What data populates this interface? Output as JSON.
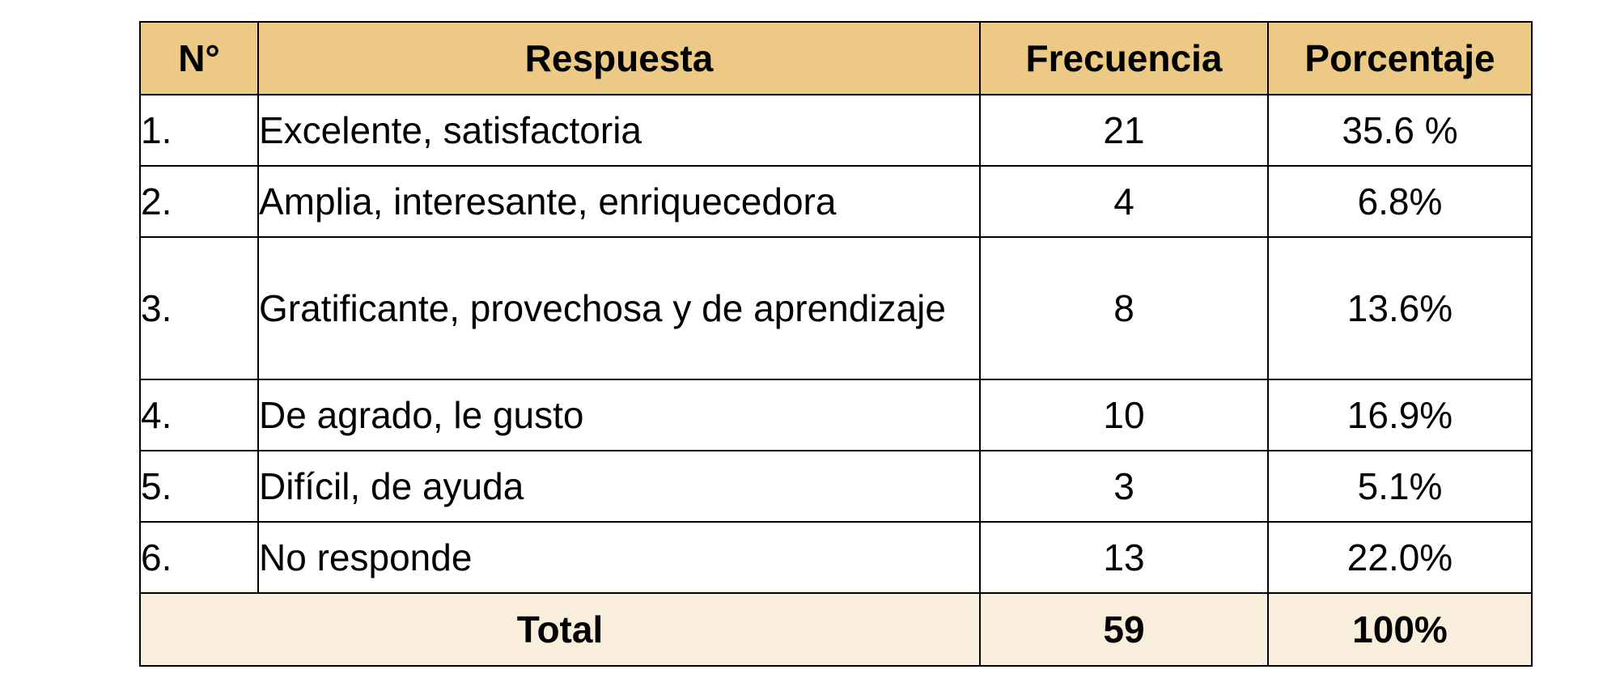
{
  "table": {
    "headers": {
      "num": "N°",
      "respuesta": "Respuesta",
      "frecuencia": "Frecuencia",
      "porcentaje": "Porcentaje"
    },
    "rows": [
      {
        "num": "1.",
        "respuesta": "Excelente, satisfactoria",
        "frecuencia": "21",
        "porcentaje": "35.6 %"
      },
      {
        "num": "2.",
        "respuesta": "Amplia, interesante, enriquecedora",
        "frecuencia": "4",
        "porcentaje": "6.8%"
      },
      {
        "num": "3.",
        "respuesta": "Gratificante, provechosa y de aprendizaje",
        "frecuencia": "8",
        "porcentaje": "13.6%"
      },
      {
        "num": "4.",
        "respuesta": "De agrado, le gusto",
        "frecuencia": "10",
        "porcentaje": "16.9%"
      },
      {
        "num": "5.",
        "respuesta": "Difícil, de ayuda",
        "frecuencia": "3",
        "porcentaje": "5.1%"
      },
      {
        "num": "6.",
        "respuesta": "No responde",
        "frecuencia": "13",
        "porcentaje": "22.0%"
      }
    ],
    "total": {
      "label": "Total",
      "frecuencia": "59",
      "porcentaje": "100%"
    },
    "colors": {
      "header_bg": "#ecc985",
      "total_bg": "#f8eedb",
      "border": "#000000"
    }
  }
}
